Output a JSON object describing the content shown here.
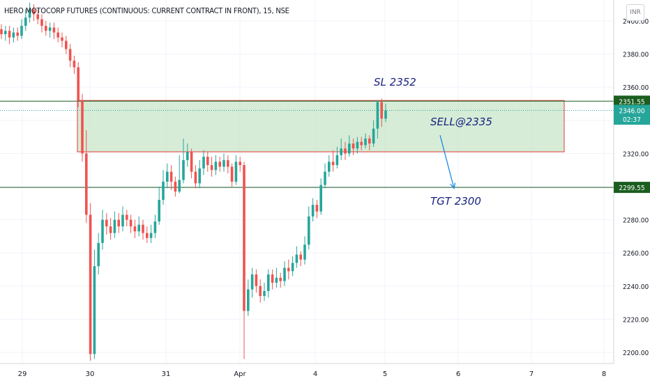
{
  "header": {
    "title": "HERO MOTOCORP FUTURES (CONTINUOUS: CURRENT CONTRACT IN FRONT), 15, NSE",
    "currency": "INR"
  },
  "chart_data": {
    "type": "candlestick",
    "ylim": [
      2193,
      2412
    ],
    "y_ticks": [
      2200,
      2220,
      2240,
      2260,
      2280,
      2300,
      2320,
      2340,
      2360,
      2380,
      2400
    ],
    "x_ticks": [
      "29",
      "30",
      "31",
      "Apr",
      "4",
      "5",
      "6",
      "7",
      "8"
    ],
    "price_labels": [
      {
        "label": "2351.55",
        "value": 2351.55,
        "color": "#1b5e20"
      },
      {
        "label": "2346.00",
        "value": 2346.0,
        "color": "#26a69a"
      },
      {
        "label": "02:37",
        "value": 2340.7,
        "color": "#26a69a"
      },
      {
        "label": "2299.55",
        "value": 2299.55,
        "color": "#1b5e20"
      }
    ],
    "horizontal_lines": [
      {
        "value": 2351.55,
        "color": "#1b5e20"
      },
      {
        "value": 2299.55,
        "color": "#1b5e20"
      }
    ],
    "last_price_line": {
      "value": 2346.0,
      "color": "#26a69a"
    },
    "zone": {
      "top": 2352,
      "bottom": 2321,
      "x_start": 111,
      "x_end": 809,
      "fill": "#c8e6c9",
      "border": "#e53935"
    },
    "annotations": [
      {
        "text": "SL 2352",
        "x": 536,
        "y": 2361
      },
      {
        "text": "SELL@2335",
        "x": 617,
        "y": 2337
      },
      {
        "text": "TGT 2300",
        "x": 617,
        "y": 2289
      }
    ],
    "arrow": {
      "from": [
        631,
        2331
      ],
      "to": [
        651,
        2299
      ]
    },
    "candles": [
      [
        0,
        2395,
        2392,
        2398,
        2389
      ],
      [
        1,
        2392,
        2394,
        2397,
        2388
      ],
      [
        2,
        2394,
        2390,
        2397,
        2386
      ],
      [
        3,
        2390,
        2393,
        2396,
        2387
      ],
      [
        4,
        2393,
        2391,
        2396,
        2388
      ],
      [
        5,
        2391,
        2397,
        2401,
        2389
      ],
      [
        6,
        2397,
        2402,
        2407,
        2394
      ],
      [
        7,
        2402,
        2407,
        2411,
        2399
      ],
      [
        8,
        2407,
        2404,
        2410,
        2400
      ],
      [
        9,
        2404,
        2401,
        2407,
        2398
      ],
      [
        10,
        2401,
        2397,
        2404,
        2393
      ],
      [
        11,
        2397,
        2394,
        2400,
        2391
      ],
      [
        12,
        2394,
        2396,
        2399,
        2390
      ],
      [
        13,
        2396,
        2393,
        2399,
        2389
      ],
      [
        14,
        2393,
        2390,
        2396,
        2387
      ],
      [
        15,
        2390,
        2388,
        2393,
        2384
      ],
      [
        16,
        2388,
        2383,
        2391,
        2380
      ],
      [
        17,
        2383,
        2376,
        2386,
        2372
      ],
      [
        18,
        2376,
        2372,
        2379,
        2368
      ],
      [
        19,
        2372,
        2352,
        2375,
        2348
      ],
      [
        20,
        2352,
        2320,
        2356,
        2315
      ],
      [
        21,
        2320,
        2283,
        2334,
        2278
      ],
      [
        22,
        2283,
        2199,
        2290,
        2195
      ],
      [
        23,
        2199,
        2252,
        2262,
        2196
      ],
      [
        24,
        2252,
        2266,
        2272,
        2247
      ],
      [
        25,
        2266,
        2280,
        2286,
        2262
      ],
      [
        26,
        2280,
        2276,
        2284,
        2271
      ],
      [
        27,
        2276,
        2272,
        2281,
        2268
      ],
      [
        28,
        2272,
        2280,
        2285,
        2269
      ],
      [
        29,
        2280,
        2276,
        2284,
        2272
      ],
      [
        30,
        2276,
        2283,
        2288,
        2273
      ],
      [
        31,
        2283,
        2280,
        2286,
        2276
      ],
      [
        32,
        2280,
        2276,
        2283,
        2272
      ],
      [
        33,
        2276,
        2273,
        2280,
        2269
      ],
      [
        34,
        2273,
        2277,
        2282,
        2270
      ],
      [
        35,
        2277,
        2272,
        2280,
        2268
      ],
      [
        36,
        2272,
        2269,
        2276,
        2266
      ],
      [
        37,
        2269,
        2272,
        2277,
        2266
      ],
      [
        38,
        2272,
        2279,
        2283,
        2269
      ],
      [
        39,
        2279,
        2292,
        2300,
        2277
      ],
      [
        40,
        2292,
        2303,
        2310,
        2289
      ],
      [
        41,
        2303,
        2309,
        2314,
        2299
      ],
      [
        42,
        2309,
        2303,
        2313,
        2298
      ],
      [
        43,
        2303,
        2297,
        2306,
        2294
      ],
      [
        44,
        2297,
        2304,
        2319,
        2296
      ],
      [
        45,
        2304,
        2316,
        2329,
        2302
      ],
      [
        46,
        2316,
        2321,
        2326,
        2312
      ],
      [
        47,
        2321,
        2309,
        2323,
        2305
      ],
      [
        48,
        2309,
        2302,
        2313,
        2299
      ],
      [
        49,
        2302,
        2311,
        2316,
        2299
      ],
      [
        50,
        2311,
        2318,
        2322,
        2307
      ],
      [
        51,
        2318,
        2313,
        2321,
        2309
      ],
      [
        52,
        2313,
        2310,
        2318,
        2306
      ],
      [
        53,
        2310,
        2315,
        2319,
        2307
      ],
      [
        54,
        2315,
        2312,
        2318,
        2309
      ],
      [
        55,
        2312,
        2316,
        2320,
        2309
      ],
      [
        56,
        2316,
        2312,
        2319,
        2308
      ],
      [
        57,
        2312,
        2303,
        2314,
        2300
      ],
      [
        58,
        2303,
        2315,
        2319,
        2301
      ],
      [
        59,
        2315,
        2313,
        2318,
        2309
      ],
      [
        60,
        2313,
        2225,
        2315,
        2196
      ],
      [
        61,
        2225,
        2238,
        2244,
        2222
      ],
      [
        62,
        2238,
        2247,
        2251,
        2233
      ],
      [
        63,
        2247,
        2240,
        2250,
        2236
      ],
      [
        64,
        2240,
        2234,
        2244,
        2230
      ],
      [
        65,
        2234,
        2237,
        2242,
        2231
      ],
      [
        66,
        2237,
        2247,
        2250,
        2233
      ],
      [
        67,
        2247,
        2242,
        2250,
        2238
      ],
      [
        68,
        2242,
        2245,
        2251,
        2239
      ],
      [
        69,
        2245,
        2243,
        2248,
        2239
      ],
      [
        70,
        2243,
        2251,
        2255,
        2240
      ],
      [
        71,
        2251,
        2249,
        2256,
        2244
      ],
      [
        72,
        2249,
        2254,
        2258,
        2246
      ],
      [
        73,
        2254,
        2259,
        2264,
        2251
      ],
      [
        74,
        2259,
        2256,
        2261,
        2252
      ],
      [
        75,
        2256,
        2265,
        2270,
        2253
      ],
      [
        76,
        2265,
        2282,
        2288,
        2262
      ],
      [
        77,
        2282,
        2289,
        2293,
        2279
      ],
      [
        78,
        2289,
        2285,
        2292,
        2281
      ],
      [
        79,
        2285,
        2301,
        2305,
        2283
      ],
      [
        80,
        2301,
        2309,
        2314,
        2299
      ],
      [
        81,
        2309,
        2315,
        2319,
        2306
      ],
      [
        82,
        2315,
        2313,
        2322,
        2309
      ],
      [
        83,
        2313,
        2319,
        2324,
        2311
      ],
      [
        84,
        2319,
        2323,
        2329,
        2316
      ],
      [
        85,
        2323,
        2320,
        2327,
        2316
      ],
      [
        86,
        2320,
        2326,
        2331,
        2318
      ],
      [
        87,
        2326,
        2323,
        2329,
        2319
      ],
      [
        88,
        2323,
        2327,
        2330,
        2320
      ],
      [
        89,
        2327,
        2325,
        2330,
        2322
      ],
      [
        90,
        2325,
        2329,
        2332,
        2323
      ],
      [
        91,
        2329,
        2326,
        2331,
        2322
      ],
      [
        92,
        2326,
        2335,
        2340,
        2324
      ],
      [
        93,
        2335,
        2351,
        2352,
        2329
      ],
      [
        94,
        2351,
        2341,
        2353,
        2336
      ],
      [
        95,
        2341,
        2346,
        2350,
        2339
      ]
    ]
  }
}
